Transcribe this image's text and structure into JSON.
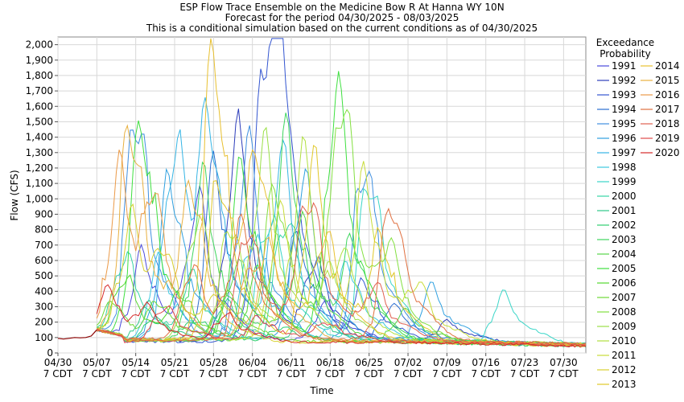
{
  "chart_data": {
    "type": "line",
    "title_lines": [
      "ESP Flow Trace Ensemble on the Medicine Bow R At Hanna WY 10N",
      "Forecast for the period 04/30/2025 - 08/03/2025",
      "This is a conditional simulation based on the current conditions as of 04/30/2025"
    ],
    "xlabel": "Time",
    "ylabel": "Flow (CFS)",
    "x_tick_dates": [
      "04/30",
      "05/07",
      "05/14",
      "05/21",
      "05/28",
      "06/04",
      "06/11",
      "06/18",
      "06/25",
      "07/02",
      "07/09",
      "07/16",
      "07/23",
      "07/30"
    ],
    "x_tick_sublabel": "7 CDT",
    "x_range_days": [
      0,
      95
    ],
    "ylim": [
      0,
      2050
    ],
    "y_ticks": [
      0,
      100,
      200,
      300,
      400,
      500,
      600,
      700,
      800,
      900,
      "1,000",
      "1,100",
      "1,200",
      "1,300",
      "1,400",
      "1,500",
      "1,600",
      "1,700",
      "1,800",
      "1,900",
      "2,000"
    ],
    "grid": true,
    "legend_title": "Exceedance Probability",
    "legend_placement": "right",
    "observed": {
      "color": "#8b0000",
      "x": [
        0,
        1,
        2,
        3,
        4,
        5,
        6,
        7
      ],
      "y": [
        95,
        90,
        95,
        100,
        98,
        100,
        110,
        150
      ]
    },
    "series": [
      {
        "name": "1991",
        "color": "#4a4adc",
        "peaks": [
          [
            15,
            620
          ],
          [
            25,
            960
          ],
          [
            48,
            300
          ]
        ],
        "baseline": 85
      },
      {
        "name": "1992",
        "color": "#2d3dbb",
        "peaks": [
          [
            32,
            1420
          ],
          [
            46,
            600
          ],
          [
            70,
            200
          ]
        ],
        "baseline": 80
      },
      {
        "name": "1993",
        "color": "#3355d0",
        "peaks": [
          [
            37,
            1580
          ],
          [
            40,
            1520
          ],
          [
            55,
            450
          ]
        ],
        "baseline": 75
      },
      {
        "name": "1994",
        "color": "#2a6dd0",
        "peaks": [
          [
            28,
            1160
          ],
          [
            43,
            720
          ],
          [
            60,
            300
          ]
        ],
        "baseline": 85
      },
      {
        "name": "1995",
        "color": "#3f8fe0",
        "peaks": [
          [
            14,
            1590
          ],
          [
            34,
            1320
          ],
          [
            55,
            1260
          ]
        ],
        "baseline": 80
      },
      {
        "name": "1996",
        "color": "#2fa0e0",
        "peaks": [
          [
            20,
            1120
          ],
          [
            44,
            1140
          ],
          [
            67,
            420
          ]
        ],
        "baseline": 90
      },
      {
        "name": "1997",
        "color": "#35b5e5",
        "peaks": [
          [
            21,
            1370
          ],
          [
            27,
            1280
          ],
          [
            40,
            1260
          ]
        ],
        "baseline": 90
      },
      {
        "name": "1998",
        "color": "#3cc8e0",
        "peaks": [
          [
            18,
            580
          ],
          [
            35,
            760
          ],
          [
            52,
            560
          ]
        ],
        "baseline": 80
      },
      {
        "name": "1999",
        "color": "#3ad6c8",
        "peaks": [
          [
            38,
            900
          ],
          [
            56,
            1160
          ],
          [
            80,
            380
          ]
        ],
        "baseline": 85
      },
      {
        "name": "2000",
        "color": "#35d4a5",
        "peaks": [
          [
            12,
            620
          ],
          [
            24,
            480
          ],
          [
            41,
            900
          ]
        ],
        "baseline": 75
      },
      {
        "name": "2001",
        "color": "#30c888",
        "peaks": [
          [
            16,
            300
          ],
          [
            30,
            320
          ],
          [
            45,
            280
          ]
        ],
        "baseline": 70
      },
      {
        "name": "2002",
        "color": "#2fcf70",
        "peaks": [
          [
            17,
            200
          ],
          [
            25,
            180
          ],
          [
            40,
            160
          ]
        ],
        "baseline": 70
      },
      {
        "name": "2003",
        "color": "#3ed65e",
        "peaks": [
          [
            26,
            1100
          ],
          [
            41,
            1380
          ],
          [
            53,
            700
          ]
        ],
        "baseline": 85
      },
      {
        "name": "2004",
        "color": "#56d64a",
        "peaks": [
          [
            32,
            560
          ],
          [
            44,
            800
          ],
          [
            62,
            260
          ]
        ],
        "baseline": 80
      },
      {
        "name": "2005",
        "color": "#3fe040",
        "peaks": [
          [
            15,
            1480
          ],
          [
            33,
            1180
          ],
          [
            50,
            1700
          ]
        ],
        "baseline": 90
      },
      {
        "name": "2006",
        "color": "#54d830",
        "peaks": [
          [
            12,
            480
          ],
          [
            22,
            360
          ],
          [
            36,
            520
          ]
        ],
        "baseline": 75
      },
      {
        "name": "2007",
        "color": "#6ed836",
        "peaks": [
          [
            10,
            260
          ],
          [
            18,
            300
          ],
          [
            30,
            380
          ]
        ],
        "baseline": 75
      },
      {
        "name": "2008",
        "color": "#83e040",
        "peaks": [
          [
            39,
            1070
          ],
          [
            51,
            1700
          ],
          [
            60,
            520
          ]
        ],
        "baseline": 85
      },
      {
        "name": "2009",
        "color": "#9be048",
        "peaks": [
          [
            25,
            900
          ],
          [
            37,
            1300
          ],
          [
            49,
            520
          ]
        ],
        "baseline": 80
      },
      {
        "name": "2010",
        "color": "#b0e040",
        "peaks": [
          [
            31,
            860
          ],
          [
            44,
            1240
          ],
          [
            52,
            460
          ]
        ],
        "baseline": 80
      },
      {
        "name": "2011",
        "color": "#c8dc3a",
        "peaks": [
          [
            40,
            880
          ],
          [
            55,
            1110
          ],
          [
            65,
            380
          ]
        ],
        "baseline": 90
      },
      {
        "name": "2012",
        "color": "#d8d030",
        "peaks": [
          [
            13,
            860
          ],
          [
            19,
            520
          ],
          [
            28,
            300
          ]
        ],
        "baseline": 70
      },
      {
        "name": "2013",
        "color": "#e0c828",
        "peaks": [
          [
            29,
            1150
          ],
          [
            46,
            1200
          ],
          [
            58,
            720
          ]
        ],
        "baseline": 80
      },
      {
        "name": "2014",
        "color": "#e8c030",
        "peaks": [
          [
            28,
            1950
          ],
          [
            36,
            1060
          ],
          [
            48,
            760
          ]
        ],
        "baseline": 85
      },
      {
        "name": "2015",
        "color": "#e8b040",
        "peaks": [
          [
            13,
            1500
          ],
          [
            24,
            1050
          ],
          [
            38,
            680
          ]
        ],
        "baseline": 80
      },
      {
        "name": "2016",
        "color": "#eb9a48",
        "peaks": [
          [
            11,
            1120
          ],
          [
            17,
            860
          ],
          [
            35,
            600
          ]
        ],
        "baseline": 75
      },
      {
        "name": "2017",
        "color": "#e07040",
        "peaks": [
          [
            24,
            560
          ],
          [
            33,
            760
          ],
          [
            60,
            980
          ]
        ],
        "baseline": 90
      },
      {
        "name": "2018",
        "color": "#e06050",
        "peaks": [
          [
            34,
            820
          ],
          [
            45,
            1020
          ],
          [
            57,
            420
          ]
        ],
        "baseline": 85
      },
      {
        "name": "2019",
        "color": "#e04a4a",
        "peaks": [
          [
            19,
            300
          ],
          [
            36,
            220
          ],
          [
            48,
            190
          ]
        ],
        "baseline": 75
      },
      {
        "name": "2020",
        "color": "#d62a2a",
        "peaks": [
          [
            9,
            340
          ],
          [
            16,
            240
          ],
          [
            30,
            240
          ]
        ],
        "baseline": 70
      }
    ]
  }
}
